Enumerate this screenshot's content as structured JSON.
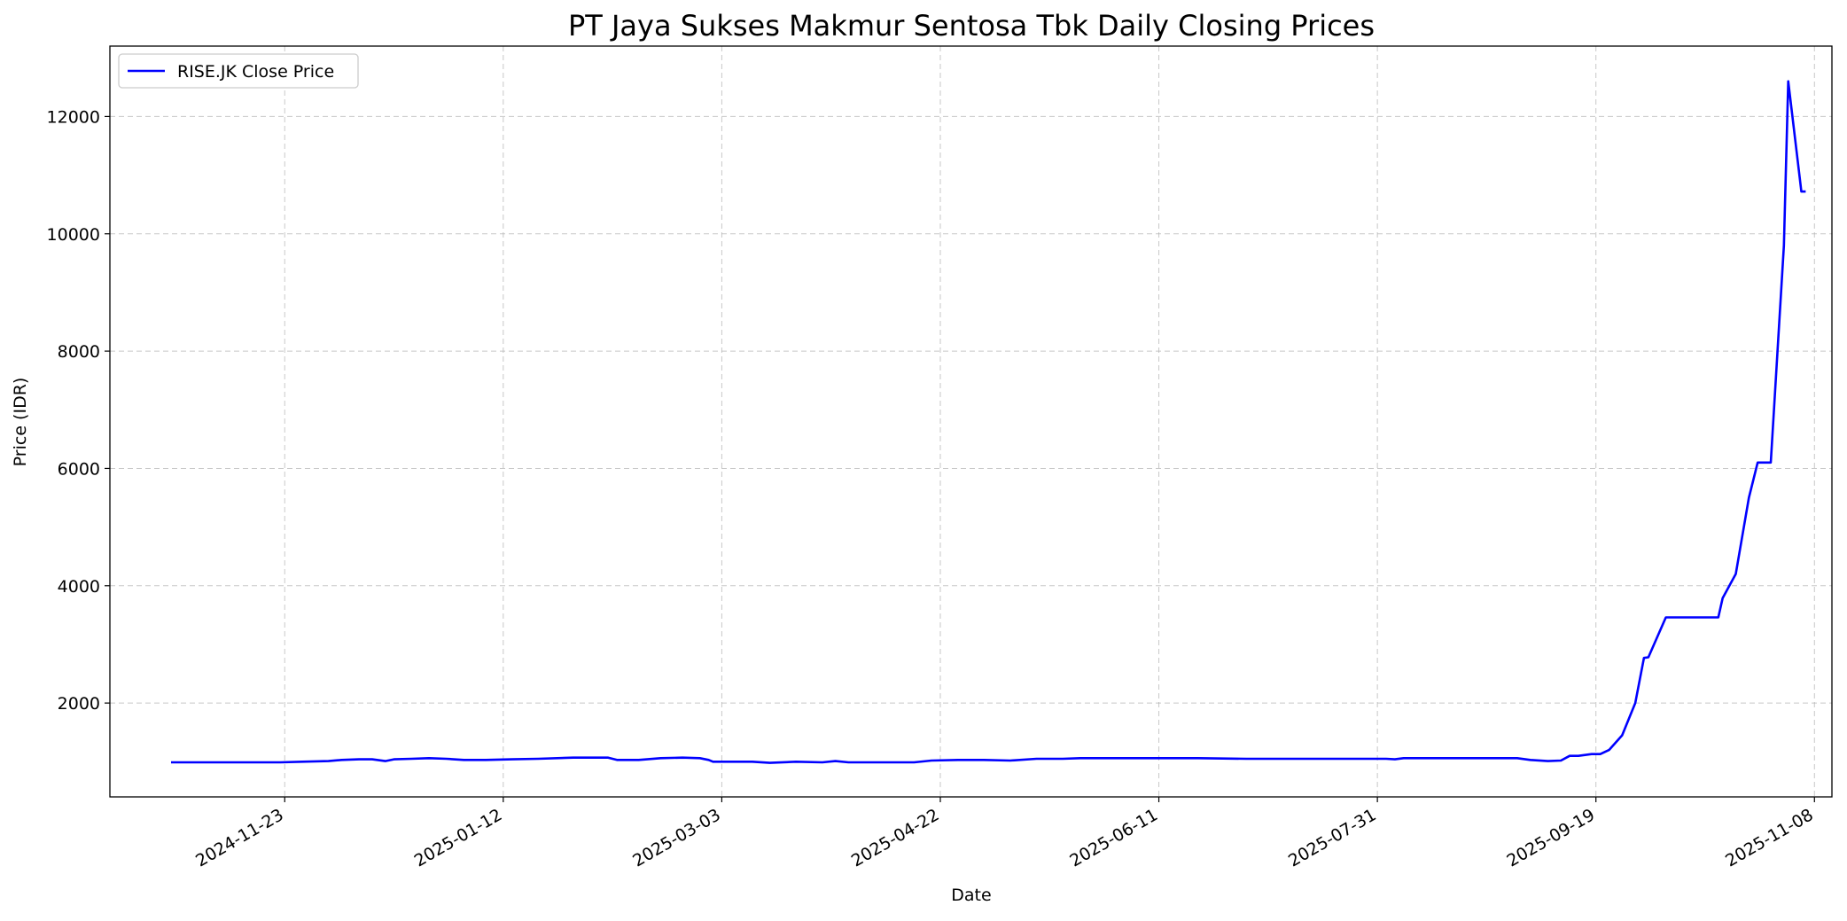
{
  "colors": {
    "series": "#0000ff",
    "grid": "#b0b0b0",
    "axis": "#000000",
    "background": "#ffffff"
  },
  "chart_data": {
    "type": "line",
    "title": "PT Jaya Sukses Makmur Sentosa Tbk Daily Closing Prices",
    "xlabel": "Date",
    "ylabel": "Price (IDR)",
    "xlim": [
      "2024-10-14",
      "2025-11-12"
    ],
    "ylim": [
      400,
      13200
    ],
    "x_ticks": [
      "2024-11-23",
      "2025-01-12",
      "2025-03-03",
      "2025-04-22",
      "2025-06-11",
      "2025-07-31",
      "2025-09-19",
      "2025-11-08"
    ],
    "y_ticks": [
      2000,
      4000,
      6000,
      8000,
      10000,
      12000
    ],
    "grid": true,
    "grid_style": "dashed",
    "legend_position": "top-left",
    "series": [
      {
        "name": "RISE.JK Close Price",
        "color": "#0000ff",
        "points": [
          [
            "2024-10-28",
            990
          ],
          [
            "2024-11-10",
            990
          ],
          [
            "2024-11-22",
            990
          ],
          [
            "2024-11-27",
            1000
          ],
          [
            "2024-12-03",
            1010
          ],
          [
            "2024-12-06",
            1030
          ],
          [
            "2024-12-10",
            1040
          ],
          [
            "2024-12-13",
            1040
          ],
          [
            "2024-12-16",
            1010
          ],
          [
            "2024-12-18",
            1040
          ],
          [
            "2024-12-22",
            1050
          ],
          [
            "2024-12-26",
            1060
          ],
          [
            "2024-12-30",
            1050
          ],
          [
            "2025-01-03",
            1030
          ],
          [
            "2025-01-08",
            1030
          ],
          [
            "2025-01-14",
            1040
          ],
          [
            "2025-01-20",
            1050
          ],
          [
            "2025-01-28",
            1070
          ],
          [
            "2025-02-05",
            1070
          ],
          [
            "2025-02-07",
            1030
          ],
          [
            "2025-02-12",
            1030
          ],
          [
            "2025-02-17",
            1060
          ],
          [
            "2025-02-22",
            1070
          ],
          [
            "2025-02-26",
            1060
          ],
          [
            "2025-02-28",
            1030
          ],
          [
            "2025-03-01",
            1000
          ],
          [
            "2025-03-10",
            1000
          ],
          [
            "2025-03-14",
            980
          ],
          [
            "2025-03-20",
            1000
          ],
          [
            "2025-03-26",
            990
          ],
          [
            "2025-03-29",
            1010
          ],
          [
            "2025-04-01",
            990
          ],
          [
            "2025-04-10",
            990
          ],
          [
            "2025-04-16",
            990
          ],
          [
            "2025-04-20",
            1020
          ],
          [
            "2025-04-26",
            1030
          ],
          [
            "2025-05-02",
            1030
          ],
          [
            "2025-05-08",
            1020
          ],
          [
            "2025-05-14",
            1050
          ],
          [
            "2025-05-20",
            1050
          ],
          [
            "2025-05-24",
            1060
          ],
          [
            "2025-06-05",
            1060
          ],
          [
            "2025-06-20",
            1060
          ],
          [
            "2025-07-01",
            1050
          ],
          [
            "2025-07-15",
            1050
          ],
          [
            "2025-07-25",
            1050
          ],
          [
            "2025-08-02",
            1050
          ],
          [
            "2025-08-04",
            1040
          ],
          [
            "2025-08-06",
            1060
          ],
          [
            "2025-08-20",
            1060
          ],
          [
            "2025-09-01",
            1060
          ],
          [
            "2025-09-04",
            1030
          ],
          [
            "2025-09-08",
            1010
          ],
          [
            "2025-09-11",
            1020
          ],
          [
            "2025-09-13",
            1100
          ],
          [
            "2025-09-15",
            1100
          ],
          [
            "2025-09-18",
            1130
          ],
          [
            "2025-09-20",
            1130
          ],
          [
            "2025-09-22",
            1200
          ],
          [
            "2025-09-25",
            1450
          ],
          [
            "2025-09-28",
            2000
          ],
          [
            "2025-09-30",
            2770
          ],
          [
            "2025-10-01",
            2780
          ],
          [
            "2025-10-05",
            3460
          ],
          [
            "2025-10-11",
            3460
          ],
          [
            "2025-10-14",
            3460
          ],
          [
            "2025-10-17",
            3460
          ],
          [
            "2025-10-18",
            3790
          ],
          [
            "2025-10-21",
            4200
          ],
          [
            "2025-10-24",
            5500
          ],
          [
            "2025-10-26",
            6100
          ],
          [
            "2025-10-29",
            6100
          ],
          [
            "2025-11-01",
            9800
          ],
          [
            "2025-11-02",
            12600
          ],
          [
            "2025-11-05",
            10720
          ],
          [
            "2025-11-06",
            10720
          ]
        ]
      }
    ]
  }
}
